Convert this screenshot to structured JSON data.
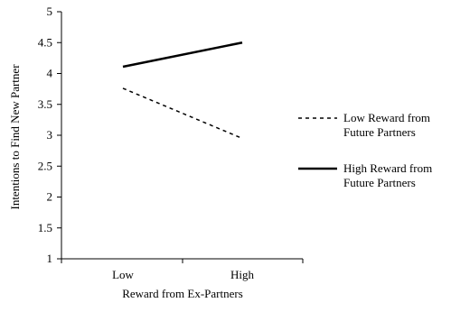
{
  "chart_data": {
    "type": "line",
    "title": "",
    "xlabel": "Reward from Ex-Partners",
    "ylabel": "Intentions to Find New Partner",
    "categories": [
      "Low",
      "High"
    ],
    "ylim": [
      1,
      5
    ],
    "yticks": [
      "1",
      "1.5",
      "2",
      "2.5",
      "3",
      "3.5",
      "4",
      "4.5",
      "5"
    ],
    "grid": false,
    "legend_position": "right",
    "series": [
      {
        "name_lines": [
          "Low Reward from",
          "Future Partners"
        ],
        "values": [
          3.76,
          2.95
        ],
        "style": "dashed",
        "color": "#000000"
      },
      {
        "name_lines": [
          "High Reward from",
          "Future Partners"
        ],
        "values": [
          4.11,
          4.5
        ],
        "style": "solid",
        "color": "#000000"
      }
    ]
  }
}
